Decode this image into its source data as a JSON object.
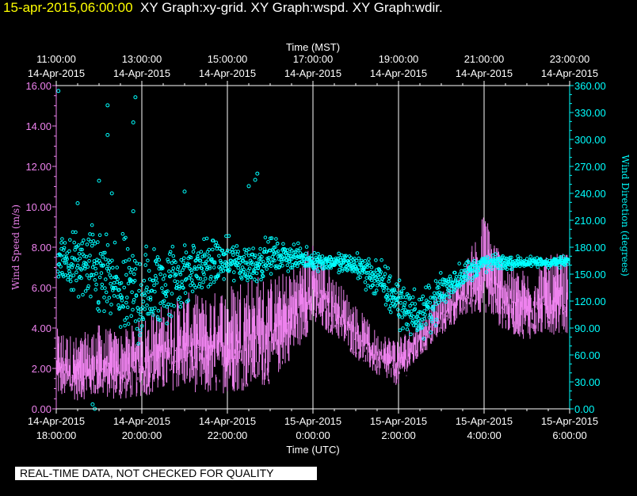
{
  "header": {
    "date": "15-apr-2015,06:00:00",
    "titles": "XY Graph:xy-grid.  XY Graph:wspd.  XY Graph:wdir."
  },
  "footer": {
    "quality_note": "REAL-TIME DATA, NOT CHECKED FOR QUALITY"
  },
  "colors": {
    "background": "#000000",
    "wind_speed": "#ee82ee",
    "wind_direction": "#00ffff",
    "grid": "#ffffff",
    "axis_text": "#ffffff"
  },
  "chart_data": {
    "type": "scatter",
    "x_top_title": "Time (MST)",
    "x_bottom_title": "Time (UTC)",
    "y_left_label": "Wind Speed (m/s)",
    "y_right_label": "Wind Direction (degrees)",
    "y_left_lim": [
      0,
      16
    ],
    "y_right_lim": [
      0,
      360
    ],
    "grid": true,
    "y_left_ticks": [
      "0.00",
      "2.00",
      "4.00",
      "6.00",
      "8.00",
      "10.00",
      "12.00",
      "14.00",
      "16.00"
    ],
    "y_right_ticks": [
      "0.00",
      "30.00",
      "60.00",
      "90.00",
      "120.00",
      "150.00",
      "180.00",
      "210.00",
      "240.00",
      "270.00",
      "300.00",
      "330.00",
      "360.00"
    ],
    "x_bottom_ticks": [
      {
        "date": "14-Apr-2015",
        "time": "18:00:00"
      },
      {
        "date": "14-Apr-2015",
        "time": "20:00:00"
      },
      {
        "date": "14-Apr-2015",
        "time": "22:00:00"
      },
      {
        "date": "15-Apr-2015",
        "time": "0:00:00"
      },
      {
        "date": "15-Apr-2015",
        "time": "2:00:00"
      },
      {
        "date": "15-Apr-2015",
        "time": "4:00:00"
      },
      {
        "date": "15-Apr-2015",
        "time": "6:00:00"
      }
    ],
    "x_top_ticks": [
      {
        "time": "11:00:00",
        "date": "14-Apr-2015"
      },
      {
        "time": "13:00:00",
        "date": "14-Apr-2015"
      },
      {
        "time": "15:00:00",
        "date": "14-Apr-2015"
      },
      {
        "time": "17:00:00",
        "date": "14-Apr-2015"
      },
      {
        "time": "19:00:00",
        "date": "14-Apr-2015"
      },
      {
        "time": "21:00:00",
        "date": "14-Apr-2015"
      },
      {
        "time": "23:00:00",
        "date": "14-Apr-2015"
      }
    ],
    "x_range_hours_utc": [
      18,
      30
    ],
    "series": [
      {
        "name": "wspd",
        "style": "line",
        "x_hours": [
          18.0,
          18.5,
          19.0,
          19.5,
          20.0,
          20.5,
          21.0,
          21.5,
          22.0,
          22.5,
          23.0,
          23.5,
          24.0,
          24.5,
          25.0,
          25.5,
          26.0,
          26.5,
          27.0,
          27.5,
          28.0,
          28.5,
          29.0,
          29.5,
          30.0
        ],
        "y_min": [
          0.6,
          0.4,
          0.6,
          0.4,
          0.6,
          0.8,
          1.0,
          0.6,
          0.8,
          0.9,
          1.2,
          2.5,
          4.0,
          3.6,
          2.5,
          1.6,
          1.1,
          2.5,
          3.6,
          4.5,
          4.8,
          3.8,
          3.4,
          3.7,
          3.6
        ],
        "y_max": [
          4.0,
          3.6,
          4.2,
          3.8,
          4.5,
          5.2,
          5.8,
          5.6,
          6.2,
          6.8,
          6.5,
          7.0,
          8.2,
          6.6,
          5.2,
          3.8,
          3.6,
          4.5,
          5.8,
          6.8,
          9.8,
          7.4,
          6.8,
          7.6,
          7.8
        ]
      },
      {
        "name": "wdir",
        "style": "scatter",
        "x_hours": [
          18.0,
          18.5,
          19.0,
          19.5,
          20.0,
          20.5,
          21.0,
          21.5,
          22.0,
          22.5,
          23.0,
          23.5,
          24.0,
          24.5,
          25.0,
          25.5,
          26.0,
          26.5,
          27.0,
          27.5,
          28.0,
          28.5,
          29.0,
          29.5,
          30.0
        ],
        "y_center": [
          165,
          160,
          150,
          130,
          125,
          140,
          150,
          160,
          165,
          160,
          170,
          170,
          165,
          163,
          160,
          145,
          120,
          100,
          130,
          150,
          162,
          163,
          163,
          163,
          164
        ],
        "y_spread": [
          25,
          40,
          55,
          60,
          60,
          50,
          40,
          30,
          25,
          25,
          20,
          15,
          10,
          10,
          15,
          25,
          30,
          25,
          25,
          15,
          10,
          8,
          6,
          6,
          6
        ]
      }
    ],
    "wdir_outliers": [
      {
        "x": 18.05,
        "y": 354
      },
      {
        "x": 19.2,
        "y": 338
      },
      {
        "x": 19.2,
        "y": 305
      },
      {
        "x": 19.85,
        "y": 347
      },
      {
        "x": 19.8,
        "y": 319
      },
      {
        "x": 19.0,
        "y": 254
      },
      {
        "x": 19.3,
        "y": 240
      },
      {
        "x": 19.8,
        "y": 220
      },
      {
        "x": 18.5,
        "y": 229
      },
      {
        "x": 22.7,
        "y": 262
      },
      {
        "x": 22.65,
        "y": 255
      },
      {
        "x": 22.5,
        "y": 248
      },
      {
        "x": 21.0,
        "y": 242
      },
      {
        "x": 18.85,
        "y": 5
      },
      {
        "x": 18.9,
        "y": 0
      }
    ]
  }
}
